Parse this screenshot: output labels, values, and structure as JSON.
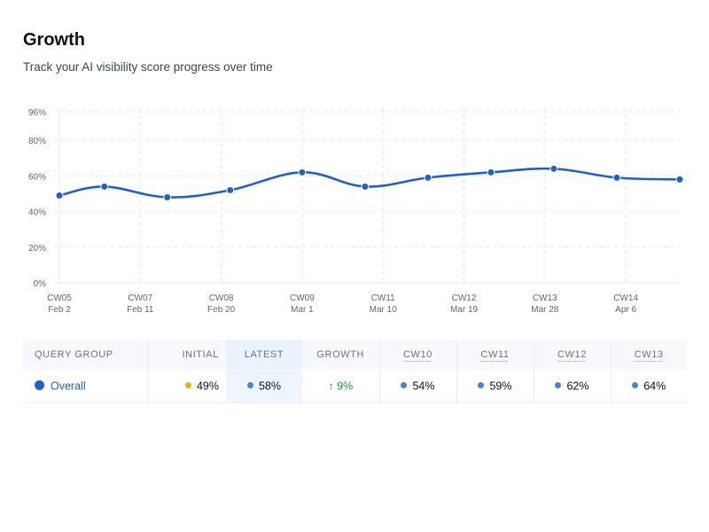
{
  "page": {
    "title": "Growth",
    "subtitle": "Track your AI visibility score progress over time"
  },
  "colors": {
    "series": "#1f5fd0",
    "initial_dot": "#f0a818",
    "latest_dot": "#3b87dc",
    "growth_positive": "#1a9a3a",
    "grid": "#e3e7ee"
  },
  "chart_data": {
    "type": "line",
    "x_ticks": [
      {
        "week": "CW05",
        "date": "Feb 2"
      },
      {
        "week": "CW07",
        "date": "Feb 11"
      },
      {
        "week": "CW08",
        "date": "Feb 20"
      },
      {
        "week": "CW09",
        "date": "Mar 1"
      },
      {
        "week": "CW11",
        "date": "Mar 10"
      },
      {
        "week": "CW12",
        "date": "Mar 19"
      },
      {
        "week": "CW13",
        "date": "Mar 28"
      },
      {
        "week": "CW14",
        "date": "Apr 6"
      }
    ],
    "y_ticks": [
      "0%",
      "20%",
      "40%",
      "60%",
      "80%",
      "96%"
    ],
    "ylim": [
      0,
      96
    ],
    "grid": true,
    "series": [
      {
        "points": [
          {
            "x": "Feb 2",
            "y": 49
          },
          {
            "x": "Feb 7",
            "y": 54
          },
          {
            "x": "Feb 14",
            "y": 48
          },
          {
            "x": "Feb 21",
            "y": 52
          },
          {
            "x": "Mar 1",
            "y": 62
          },
          {
            "x": "Mar 8",
            "y": 54
          },
          {
            "x": "Mar 15",
            "y": 59
          },
          {
            "x": "Mar 22",
            "y": 62
          },
          {
            "x": "Mar 29",
            "y": 64
          },
          {
            "x": "Apr 5",
            "y": 59
          },
          {
            "x": "Apr 12",
            "y": 58
          }
        ]
      }
    ]
  },
  "table": {
    "headers": {
      "query_group": "QUERY GROUP",
      "initial": "INITIAL",
      "latest": "LATEST",
      "growth": "GROWTH",
      "weeks": [
        "CW10",
        "CW11",
        "CW12",
        "CW13"
      ]
    },
    "rows": [
      {
        "query_group": "Overall",
        "initial": "49%",
        "latest": "58%",
        "growth": "↑ 9%",
        "weeks": [
          "54%",
          "59%",
          "62%",
          "64%"
        ]
      }
    ]
  }
}
